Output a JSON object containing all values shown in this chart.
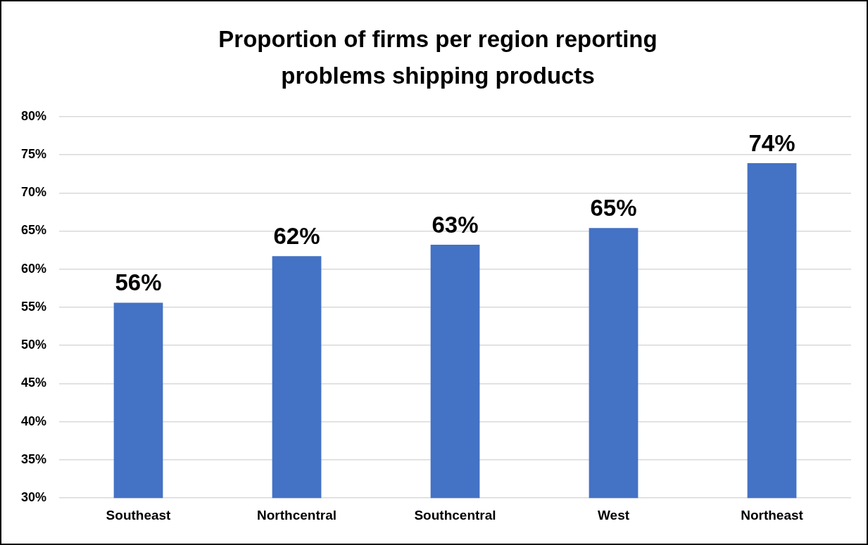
{
  "chart_data": {
    "type": "bar",
    "title": "Proportion of firms per region reporting problems shipping products",
    "categories": [
      "Southeast",
      "Northcentral",
      "Southcentral",
      "West",
      "Northeast"
    ],
    "values": [
      55.6,
      61.7,
      63.2,
      65.4,
      73.9
    ],
    "value_labels": [
      "56%",
      "62%",
      "63%",
      "65%",
      "74%"
    ],
    "color": "#4472c4",
    "ylim": [
      30,
      80
    ],
    "yticks": [
      {
        "value": 30,
        "label": "30%"
      },
      {
        "value": 35,
        "label": "35%"
      },
      {
        "value": 40,
        "label": "40%"
      },
      {
        "value": 45,
        "label": "45%"
      },
      {
        "value": 50,
        "label": "50%"
      },
      {
        "value": 55,
        "label": "55%"
      },
      {
        "value": 60,
        "label": "60%"
      },
      {
        "value": 65,
        "label": "65%"
      },
      {
        "value": 70,
        "label": "70%"
      },
      {
        "value": 75,
        "label": "75%"
      },
      {
        "value": 80,
        "label": "80%"
      }
    ],
    "grid": "y",
    "legend": false
  }
}
